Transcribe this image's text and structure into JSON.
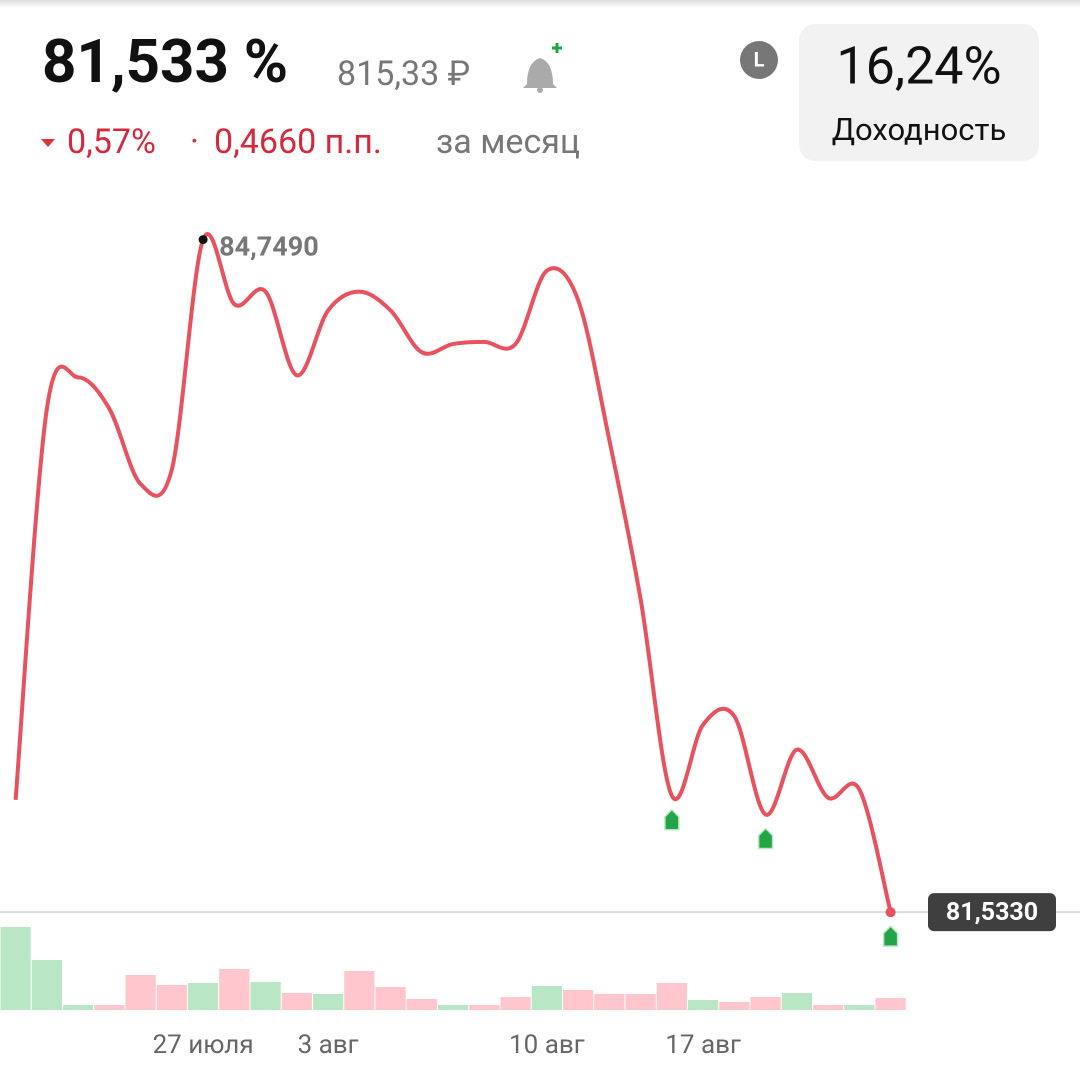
{
  "header": {
    "price": "81,533 %",
    "price_rub": "815,33 ₽",
    "change_pct": "0,57%",
    "separator": "·",
    "change_pp": "0,4660 п.п.",
    "period": "за месяц",
    "badge": "L",
    "yield_value": "16,24%",
    "yield_label": "Доходность"
  },
  "chart_data": {
    "type": "line",
    "categories": [
      null,
      null,
      null,
      null,
      null,
      null,
      "27 июля",
      null,
      null,
      null,
      "3 авг",
      null,
      null,
      null,
      null,
      null,
      null,
      "10 авг",
      null,
      null,
      null,
      null,
      "17 авг",
      null,
      null,
      null,
      null,
      null,
      null
    ],
    "values": [
      82.07,
      83.94,
      84.09,
      83.94,
      83.58,
      83.65,
      84.749,
      84.44,
      84.5,
      84.1,
      84.41,
      84.5,
      84.41,
      84.21,
      84.25,
      84.26,
      84.25,
      84.6,
      84.46,
      83.79,
      83.03,
      82.09,
      82.43,
      82.47,
      82.0,
      82.31,
      82.08,
      82.12,
      81.533
    ],
    "value_labels": [
      null,
      null,
      null,
      null,
      null,
      null,
      "84,7490",
      null,
      null,
      null,
      null,
      null,
      null,
      null,
      null,
      null,
      null,
      null,
      null,
      null,
      null,
      null,
      null,
      null,
      null,
      null,
      null,
      null,
      "81,5330"
    ],
    "color": "#e8525e",
    "ylim": [
      81.4,
      84.9
    ],
    "event_indices": [
      21,
      24,
      28
    ],
    "event_color": "#22a547",
    "volume": {
      "values": [
        83,
        50,
        5,
        5,
        35,
        25,
        27,
        41,
        28,
        17,
        16,
        39,
        23,
        11,
        5,
        5,
        13,
        24,
        20,
        16,
        16,
        27,
        10,
        8,
        13,
        17,
        5,
        5,
        12
      ],
      "directions": [
        "up",
        "up",
        "up",
        "down",
        "down",
        "down",
        "up",
        "down",
        "up",
        "down",
        "up",
        "down",
        "down",
        "down",
        "up",
        "down",
        "down",
        "up",
        "down",
        "down",
        "down",
        "down",
        "up",
        "down",
        "down",
        "up",
        "down",
        "up",
        "down"
      ],
      "up_color": "#b9e6c5",
      "down_color": "#ffc6cd",
      "ylim": [
        0,
        90
      ]
    }
  }
}
